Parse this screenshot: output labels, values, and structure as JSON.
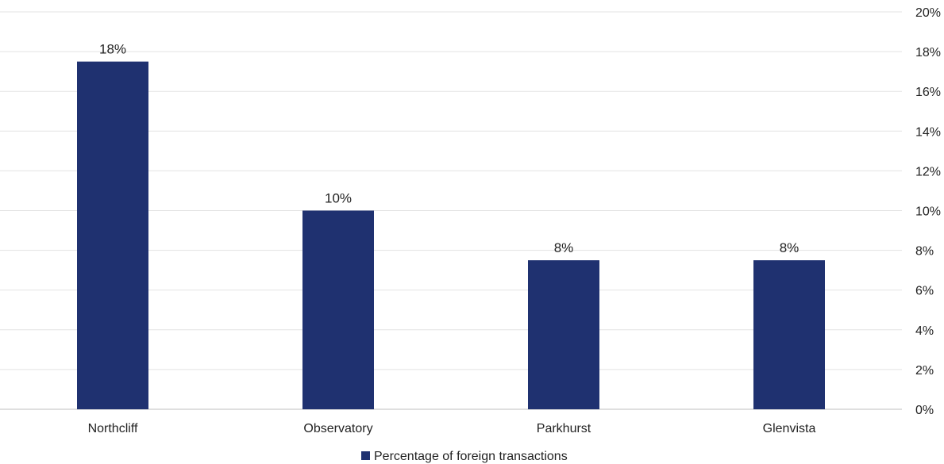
{
  "chart_data": {
    "type": "bar",
    "categories": [
      "Northcliff",
      "Observatory",
      "Parkhurst",
      "Glenvista"
    ],
    "series": [
      {
        "name": "Percentage of foreign transactions",
        "values": [
          17.5,
          10,
          7.5,
          7.5
        ],
        "data_labels": [
          "18%",
          "10%",
          "8%",
          "8%"
        ],
        "color": "#1f3170"
      }
    ],
    "ylim": [
      0,
      20
    ],
    "yticks": [
      0,
      2,
      4,
      6,
      8,
      10,
      12,
      14,
      16,
      18,
      20
    ],
    "ytick_labels": [
      "0%",
      "2%",
      "4%",
      "6%",
      "8%",
      "10%",
      "12%",
      "14%",
      "16%",
      "18%",
      "20%"
    ],
    "y_axis_side": "right",
    "grid": true,
    "legend": "bottom-center",
    "title": "",
    "xlabel": "",
    "ylabel": ""
  }
}
